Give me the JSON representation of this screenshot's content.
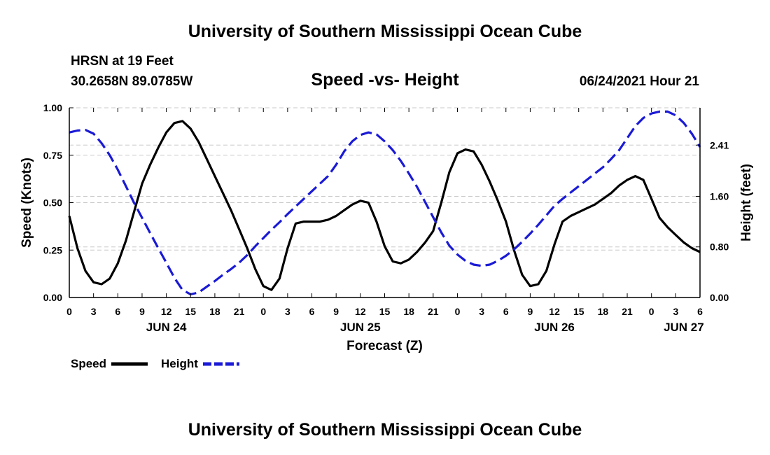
{
  "header": {
    "title_top": "University of Southern Mississippi Ocean Cube",
    "station": "HRSN at 19 Feet",
    "coords": "30.2658N  89.0785W",
    "subtitle": "Speed -vs- Height",
    "datetime": "06/24/2021 Hour 21",
    "title_bottom": "University of Southern Mississippi Ocean Cube"
  },
  "chart_data": {
    "type": "line",
    "title": "Speed -vs- Height",
    "xlabel": "Forecast (Z)",
    "ylabel": "Speed (Knots)",
    "y2label": "Height (feet)",
    "xlim": [
      0,
      78
    ],
    "ylim": [
      0,
      1
    ],
    "y2lim": [
      0,
      3.0
    ],
    "x_tick_values": [
      0,
      3,
      6,
      9,
      12,
      15,
      18,
      21,
      24,
      27,
      30,
      33,
      36,
      39,
      42,
      45,
      48,
      51,
      54,
      57,
      60,
      63,
      66,
      69,
      72,
      75,
      78
    ],
    "x_tick_labels": [
      "0",
      "3",
      "6",
      "9",
      "12",
      "15",
      "18",
      "21",
      "0",
      "3",
      "6",
      "9",
      "12",
      "15",
      "18",
      "21",
      "0",
      "3",
      "6",
      "9",
      "12",
      "15",
      "18",
      "21",
      "0",
      "3",
      "6"
    ],
    "date_labels": [
      {
        "x": 12,
        "label": "JUN 24"
      },
      {
        "x": 36,
        "label": "JUN 25"
      },
      {
        "x": 60,
        "label": "JUN 26"
      },
      {
        "x": 76,
        "label": "JUN 27"
      }
    ],
    "y_ticks": [
      0.0,
      0.25,
      0.5,
      0.75,
      1.0
    ],
    "y_tick_labels": [
      "0.00",
      "0.25",
      "0.50",
      "0.75",
      "1.00"
    ],
    "y2_ticks": [
      0.0,
      0.8,
      1.6,
      2.41
    ],
    "y2_tick_labels": [
      "0.00",
      "0.80",
      "1.60",
      "2.41"
    ],
    "grid": true,
    "series": [
      {
        "name": "Speed",
        "axis": "left",
        "color": "#000000",
        "dash": false,
        "x": [
          0,
          1,
          2,
          3,
          4,
          5,
          6,
          7,
          8,
          9,
          10,
          11,
          12,
          13,
          14,
          15,
          16,
          17,
          18,
          19,
          20,
          21,
          22,
          23,
          24,
          25,
          26,
          27,
          28,
          29,
          30,
          31,
          32,
          33,
          34,
          35,
          36,
          37,
          38,
          39,
          40,
          41,
          42,
          43,
          44,
          45,
          46,
          47,
          48,
          49,
          50,
          51,
          52,
          53,
          54,
          55,
          56,
          57,
          58,
          59,
          60,
          61,
          62,
          63,
          64,
          65,
          66,
          67,
          68,
          69,
          70,
          71,
          72,
          73,
          74,
          75,
          76,
          77,
          78
        ],
        "values": [
          0.43,
          0.26,
          0.14,
          0.08,
          0.07,
          0.1,
          0.18,
          0.3,
          0.45,
          0.6,
          0.7,
          0.79,
          0.87,
          0.92,
          0.93,
          0.89,
          0.82,
          0.73,
          0.64,
          0.55,
          0.46,
          0.36,
          0.26,
          0.15,
          0.06,
          0.04,
          0.1,
          0.26,
          0.39,
          0.4,
          0.4,
          0.4,
          0.41,
          0.43,
          0.46,
          0.49,
          0.51,
          0.5,
          0.4,
          0.27,
          0.19,
          0.18,
          0.2,
          0.24,
          0.29,
          0.35,
          0.5,
          0.66,
          0.76,
          0.78,
          0.77,
          0.7,
          0.61,
          0.51,
          0.4,
          0.25,
          0.12,
          0.06,
          0.07,
          0.14,
          0.28,
          0.4,
          0.43,
          0.45,
          0.47,
          0.49,
          0.52,
          0.55,
          0.59,
          0.62,
          0.64,
          0.62,
          0.52,
          0.42,
          0.37,
          0.33,
          0.29,
          0.26,
          0.24
        ]
      },
      {
        "name": "Height",
        "axis": "right",
        "color": "#1a1ad6",
        "dash": true,
        "x": [
          0,
          1,
          2,
          3,
          4,
          5,
          6,
          7,
          8,
          9,
          10,
          11,
          12,
          13,
          14,
          15,
          16,
          17,
          18,
          19,
          20,
          21,
          22,
          23,
          24,
          25,
          26,
          27,
          28,
          29,
          30,
          31,
          32,
          33,
          34,
          35,
          36,
          37,
          38,
          39,
          40,
          41,
          42,
          43,
          44,
          45,
          46,
          47,
          48,
          49,
          50,
          51,
          52,
          53,
          54,
          55,
          56,
          57,
          58,
          59,
          60,
          61,
          62,
          63,
          64,
          65,
          66,
          67,
          68,
          69,
          70,
          71,
          72,
          73,
          74,
          75,
          76,
          77,
          78
        ],
        "values": [
          2.61,
          2.64,
          2.65,
          2.59,
          2.44,
          2.25,
          2.02,
          1.76,
          1.5,
          1.26,
          1.02,
          0.78,
          0.55,
          0.31,
          0.12,
          0.05,
          0.08,
          0.17,
          0.26,
          0.36,
          0.45,
          0.55,
          0.67,
          0.81,
          0.94,
          1.07,
          1.19,
          1.32,
          1.44,
          1.56,
          1.68,
          1.8,
          1.92,
          2.1,
          2.31,
          2.47,
          2.57,
          2.61,
          2.58,
          2.47,
          2.33,
          2.16,
          1.96,
          1.75,
          1.51,
          1.27,
          1.03,
          0.82,
          0.68,
          0.58,
          0.52,
          0.5,
          0.52,
          0.58,
          0.66,
          0.76,
          0.88,
          1.01,
          1.15,
          1.3,
          1.45,
          1.56,
          1.66,
          1.76,
          1.86,
          1.96,
          2.06,
          2.19,
          2.33,
          2.52,
          2.71,
          2.84,
          2.91,
          2.94,
          2.94,
          2.88,
          2.76,
          2.59,
          2.38
        ]
      }
    ],
    "legend": [
      {
        "label": "Speed",
        "color": "#000000",
        "dash": false
      },
      {
        "label": "Height",
        "color": "#1a1ad6",
        "dash": true
      }
    ]
  }
}
